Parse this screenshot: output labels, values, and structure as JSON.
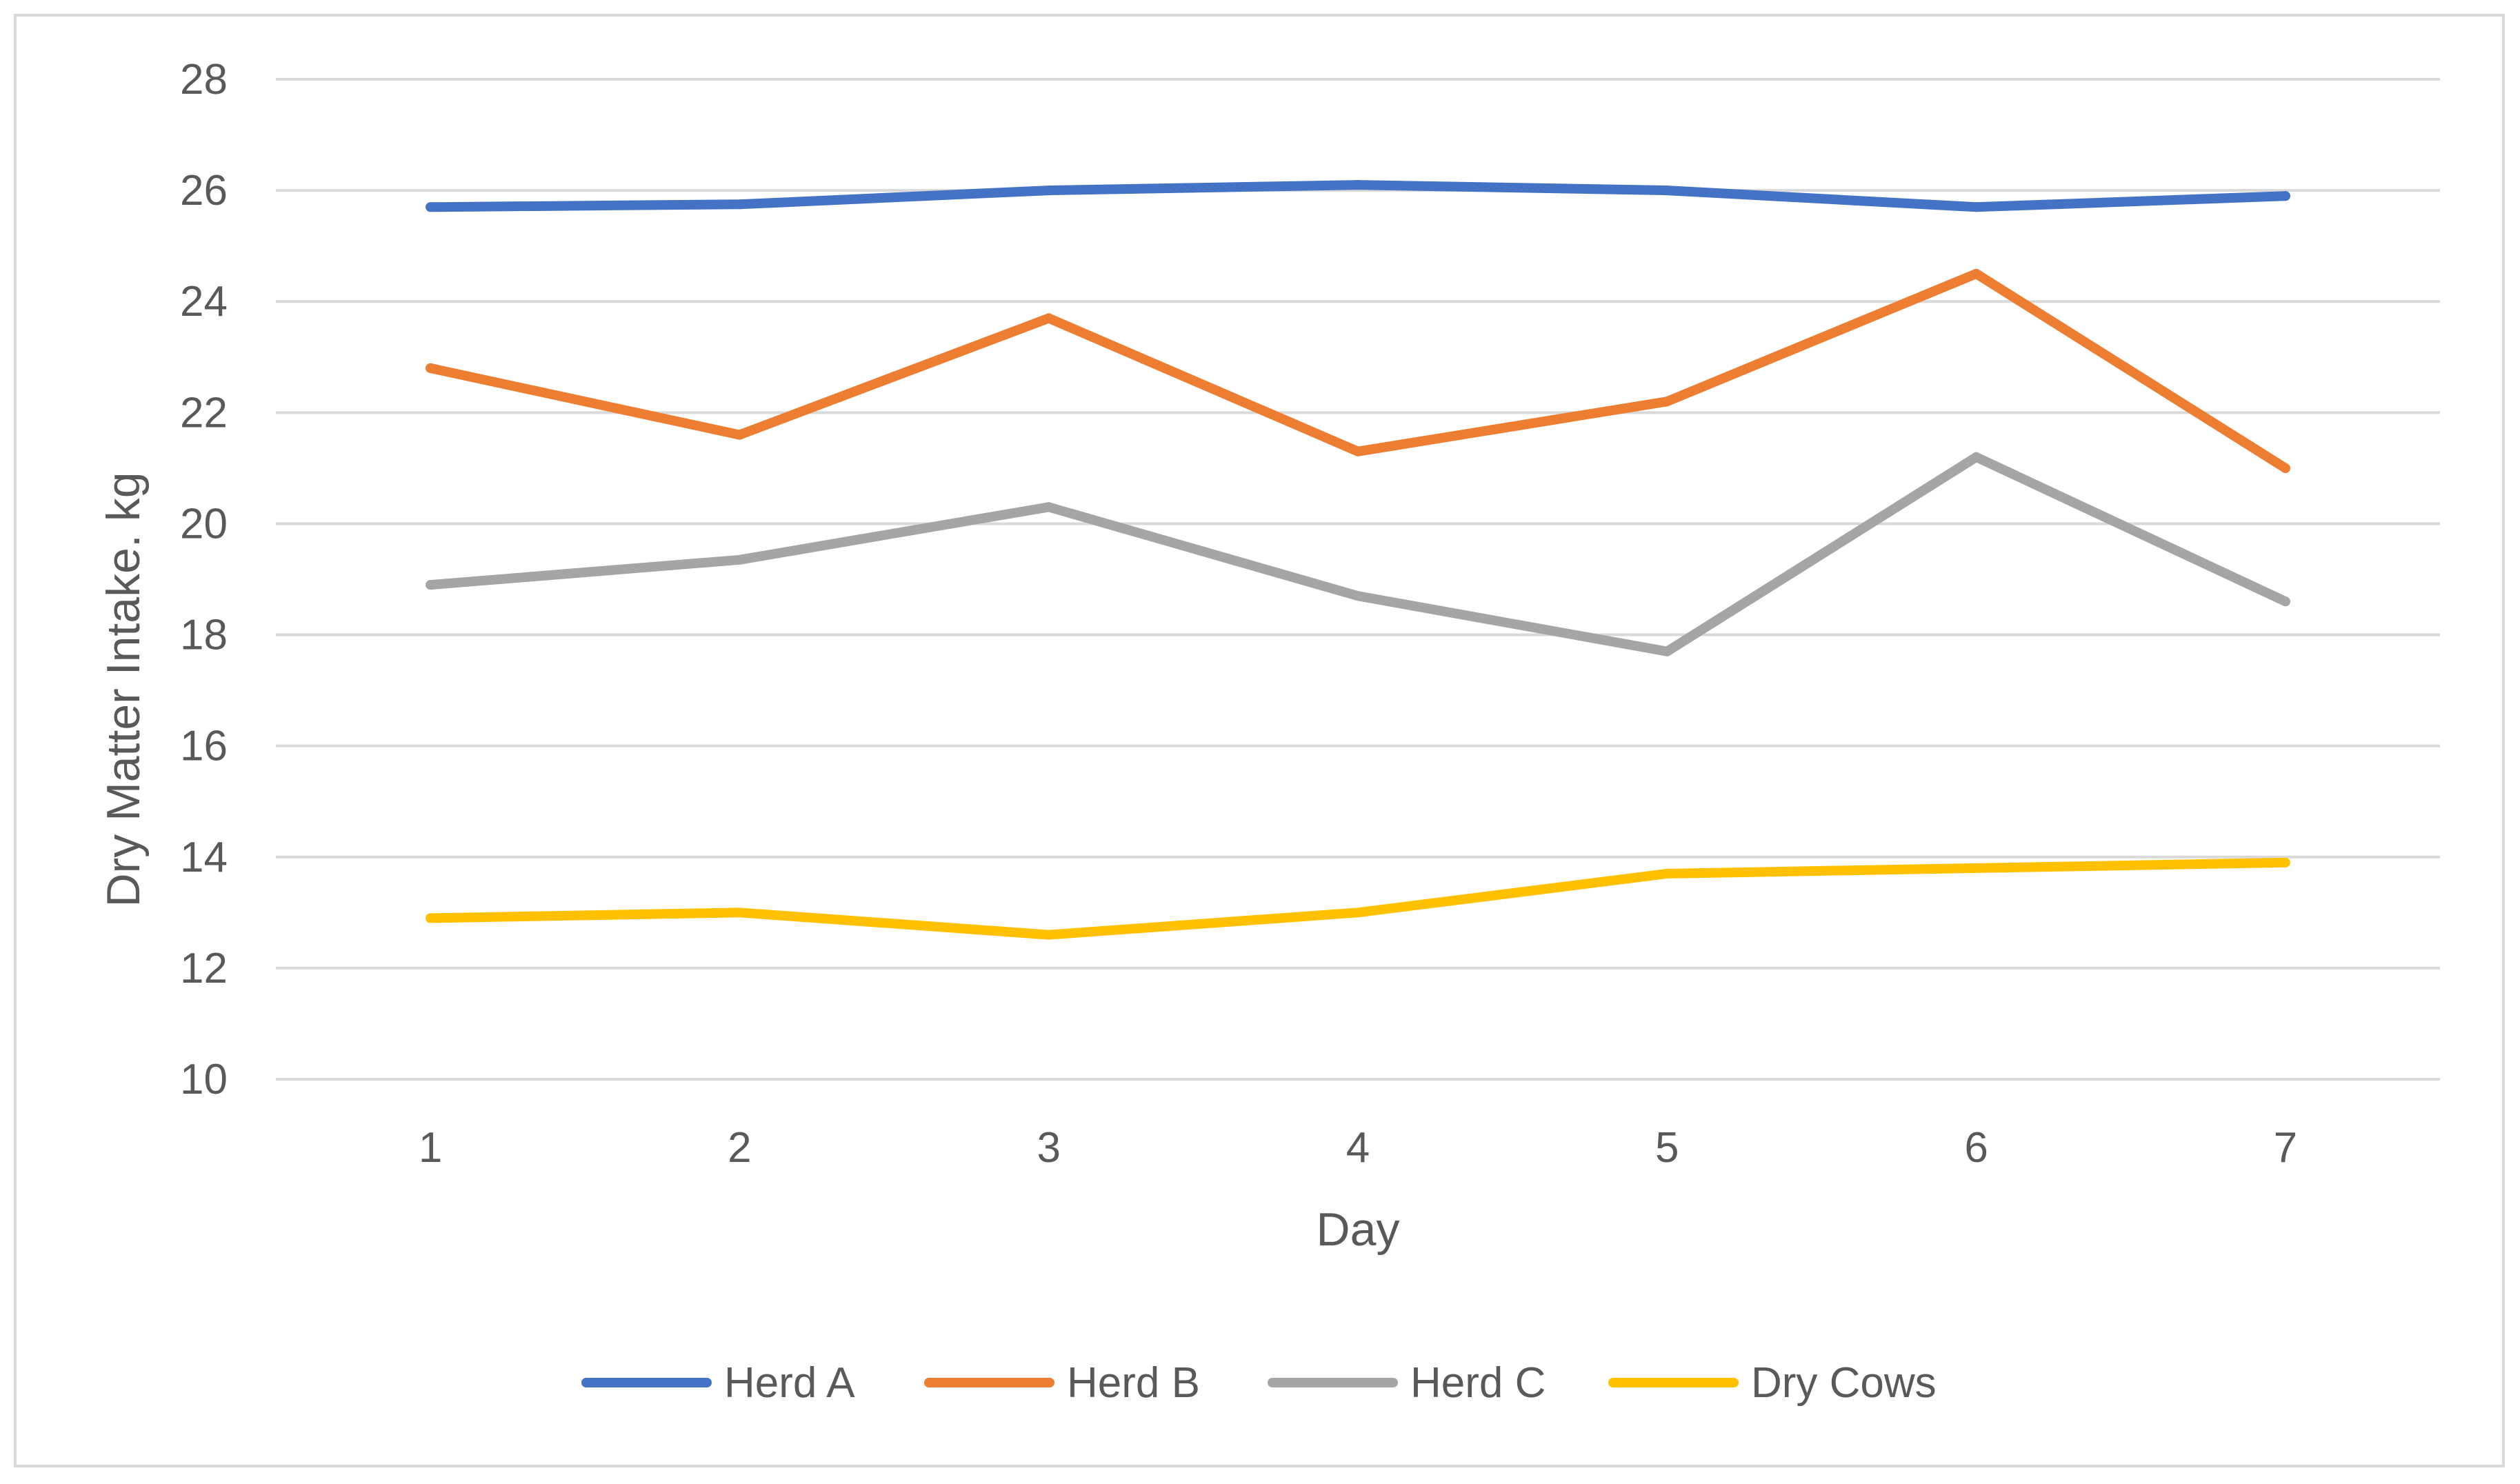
{
  "chart_data": {
    "type": "line",
    "title": "",
    "xlabel": "Day",
    "ylabel": "Dry Matter Intake. kg",
    "x": [
      1,
      2,
      3,
      4,
      5,
      6,
      7
    ],
    "x_tick_labels": [
      "1",
      "2",
      "3",
      "4",
      "5",
      "6",
      "7"
    ],
    "ylim": [
      10,
      28
    ],
    "y_ticks": [
      10,
      12,
      14,
      16,
      18,
      20,
      22,
      24,
      26,
      28
    ],
    "y_tick_labels": [
      "10",
      "12",
      "14",
      "16",
      "18",
      "20",
      "22",
      "24",
      "26",
      "28"
    ],
    "grid": true,
    "legend_position": "bottom",
    "series": [
      {
        "name": "Herd A",
        "color": "#4472c4",
        "values": [
          25.7,
          25.75,
          26.0,
          26.1,
          26.0,
          25.7,
          25.9
        ]
      },
      {
        "name": "Herd B",
        "color": "#ed7d31",
        "values": [
          22.8,
          21.6,
          23.7,
          21.3,
          22.2,
          24.5,
          21.0
        ]
      },
      {
        "name": "Herd C",
        "color": "#a5a5a5",
        "values": [
          18.9,
          19.35,
          20.3,
          18.7,
          17.7,
          21.2,
          18.6
        ]
      },
      {
        "name": "Dry Cows",
        "color": "#ffc000",
        "values": [
          12.9,
          13.0,
          12.6,
          13.0,
          13.7,
          13.8,
          13.9
        ]
      }
    ]
  }
}
